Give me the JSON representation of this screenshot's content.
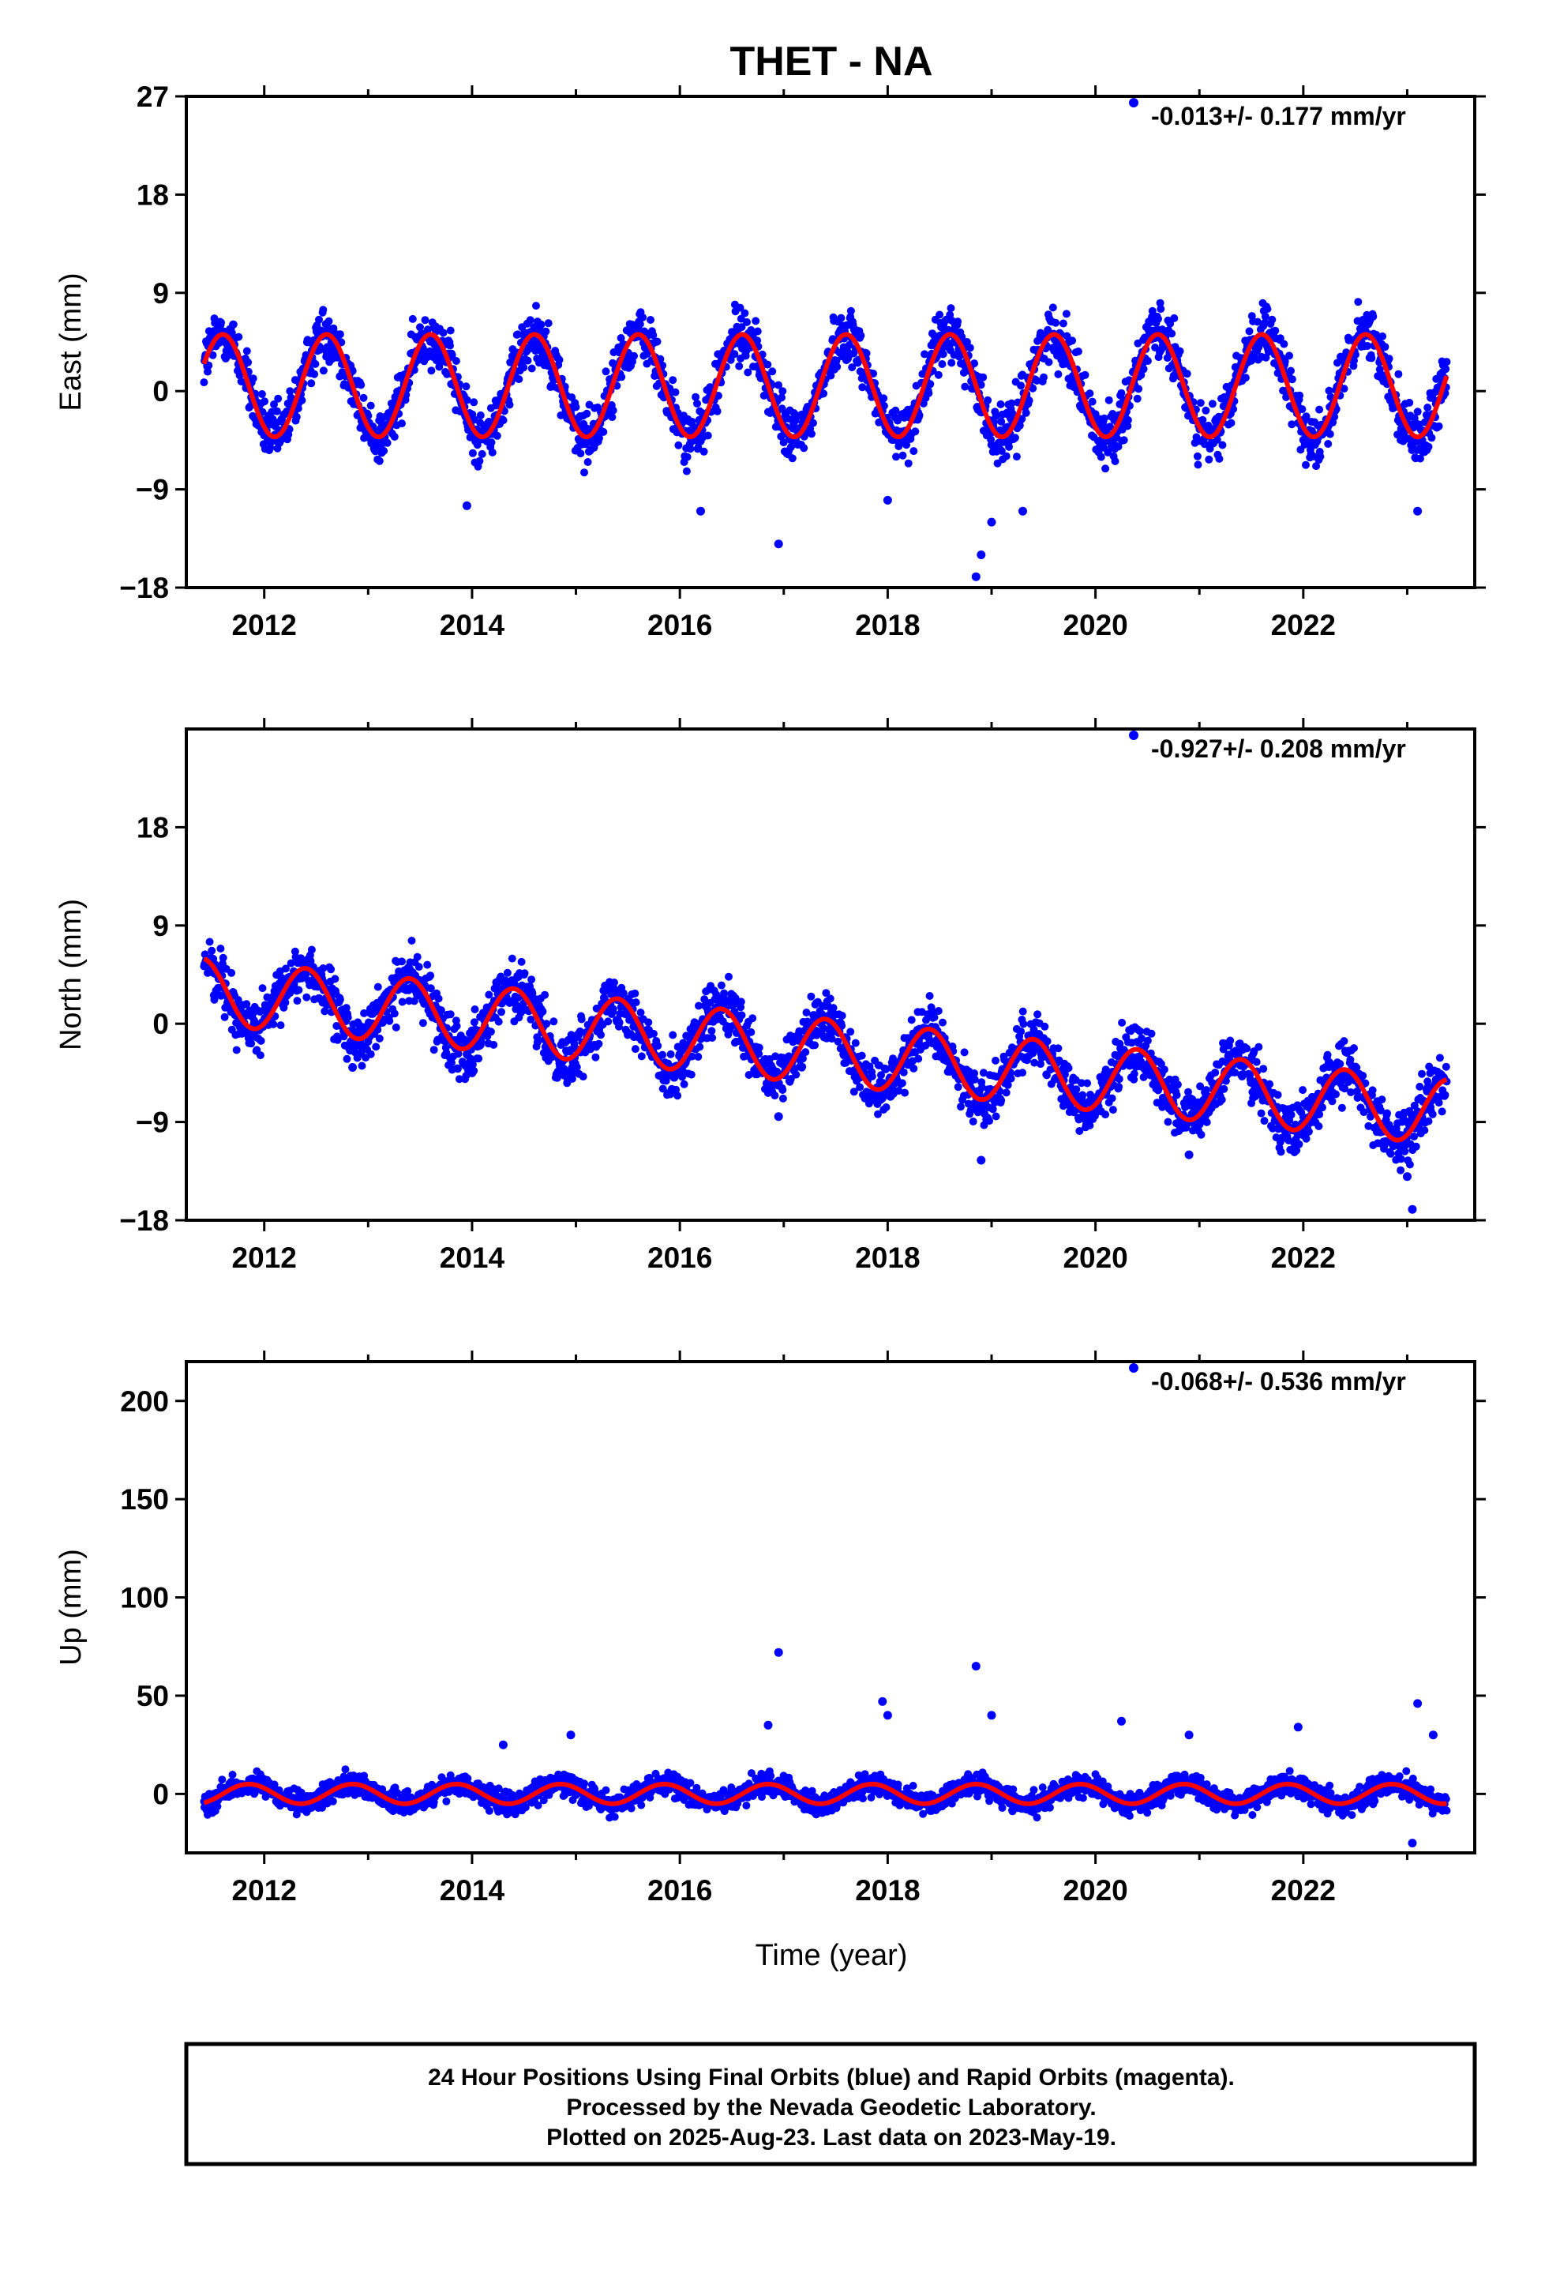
{
  "chart_data": [
    {
      "type": "scatter",
      "title": "THET - NA",
      "xlabel": "",
      "ylabel": "East (mm)",
      "xlim": [
        2011.25,
        2023.65
      ],
      "ylim": [
        -18,
        27
      ],
      "yticks": [
        27,
        18,
        9,
        0,
        -9,
        -18
      ],
      "yticklabels": [
        "27",
        "18",
        "9",
        "0",
        "−9",
        "−18"
      ],
      "xticks": [
        2012,
        2014,
        2016,
        2018,
        2020,
        2022
      ],
      "xticklabels": [
        "2012",
        "2014",
        "2016",
        "2018",
        "2020",
        "2022"
      ],
      "rate_label": "-0.013+/- 0.177 mm/yr",
      "series": [
        {
          "color": "#0000ff",
          "marker": "dot",
          "description_x_range": [
            2011.4,
            2023.38
          ],
          "x": [
            2011.4,
            2011.6,
            2011.9,
            2012.1,
            2012.4,
            2012.6,
            2012.9,
            2013.1,
            2013.4,
            2013.6,
            2013.9,
            2014.1,
            2014.4,
            2014.6,
            2014.9,
            2015.1,
            2015.4,
            2015.6,
            2015.9,
            2016.1,
            2016.4,
            2016.6,
            2016.9,
            2017.1,
            2017.4,
            2017.6,
            2017.9,
            2018.1,
            2018.4,
            2018.6,
            2018.9,
            2019.1,
            2019.4,
            2019.6,
            2019.9,
            2020.1,
            2020.4,
            2020.6,
            2020.9,
            2021.1,
            2021.4,
            2021.6,
            2021.9,
            2022.1,
            2022.4,
            2022.6,
            2022.9,
            2023.1,
            2023.38
          ],
          "y": [
            2.5,
            5.5,
            -3.5,
            -2.5,
            2.5,
            5.5,
            -3.5,
            -2.5,
            2.5,
            5.5,
            -3.5,
            -2.5,
            2.5,
            5.5,
            -3.5,
            -2.5,
            2.5,
            5.5,
            -3.5,
            -2.5,
            2.5,
            5.5,
            -3.5,
            -2.5,
            2.5,
            5.5,
            -3.5,
            -2.5,
            2.5,
            5.5,
            -3.5,
            -2.5,
            2.5,
            5.5,
            -3.5,
            -2.5,
            2.5,
            5.5,
            -3.5,
            -2.5,
            2.5,
            5.5,
            -3.5,
            -2.5,
            2.5,
            5.5,
            -3.5,
            -2.5,
            1.0
          ],
          "outliers": [
            [
              2013.95,
              -10.5
            ],
            [
              2016.2,
              -11
            ],
            [
              2016.95,
              -14
            ],
            [
              2018.0,
              -10
            ],
            [
              2018.85,
              -17
            ],
            [
              2018.9,
              -15
            ],
            [
              2019.0,
              -12
            ],
            [
              2019.3,
              -11
            ],
            [
              2023.1,
              -11
            ]
          ]
        },
        {
          "color": "#ff0000",
          "type": "line",
          "mean": 0.5,
          "amplitude": 4.7,
          "trend": -0.013
        }
      ]
    },
    {
      "type": "scatter",
      "title": "",
      "xlabel": "",
      "ylabel": "North (mm)",
      "xlim": [
        2011.25,
        2023.65
      ],
      "ylim": [
        -18,
        27
      ],
      "yticks": [
        18,
        9,
        0,
        -9,
        -18
      ],
      "yticklabels": [
        "18",
        "9",
        "0",
        "−9",
        "−18"
      ],
      "xticks": [
        2012,
        2014,
        2016,
        2018,
        2020,
        2022
      ],
      "xticklabels": [
        "2012",
        "2014",
        "2016",
        "2018",
        "2020",
        "2022"
      ],
      "rate_label": "-0.927+/- 0.208 mm/yr",
      "series": [
        {
          "color": "#0000ff",
          "marker": "dot",
          "x": [
            2011.45,
            2011.9,
            2012.3,
            2012.85,
            2013.3,
            2013.85,
            2014.3,
            2014.85,
            2015.3,
            2015.85,
            2016.3,
            2016.85,
            2017.3,
            2017.85,
            2018.3,
            2018.85,
            2019.3,
            2019.85,
            2020.3,
            2020.85,
            2021.3,
            2021.85,
            2022.3,
            2022.85,
            2023.38
          ],
          "y": [
            6.5,
            0.5,
            5.5,
            0,
            4.5,
            -1.0,
            3.5,
            -2.0,
            3.0,
            -3.0,
            2.0,
            -4.0,
            1.0,
            -5.0,
            0,
            -6.0,
            -1.0,
            -7.0,
            -2.0,
            -8.0,
            -3.0,
            -9.0,
            -4.0,
            -10.0,
            -5.0
          ],
          "outliers": [
            [
              2012.85,
              -4
            ],
            [
              2014.0,
              -4.5
            ],
            [
              2016.95,
              -8.5
            ],
            [
              2018.9,
              -12.5
            ],
            [
              2020.9,
              -12
            ],
            [
              2023.0,
              -14
            ],
            [
              2023.05,
              -17
            ]
          ]
        },
        {
          "color": "#ff0000",
          "type": "line",
          "mean": 3.5,
          "amplitude": 3.0,
          "trend": -0.927
        }
      ]
    },
    {
      "type": "scatter",
      "title": "",
      "xlabel": "Time (year)",
      "ylabel": "Up (mm)",
      "xlim": [
        2011.25,
        2023.65
      ],
      "ylim": [
        -30,
        220
      ],
      "yticks": [
        200,
        150,
        100,
        50,
        0
      ],
      "yticklabels": [
        "200",
        "150",
        "100",
        "50",
        "0"
      ],
      "xticks": [
        2012,
        2014,
        2016,
        2018,
        2020,
        2022
      ],
      "xticklabels": [
        "2012",
        "2014",
        "2016",
        "2018",
        "2020",
        "2022"
      ],
      "rate_label": "-0.068+/- 0.536 mm/yr",
      "series": [
        {
          "color": "#0000ff",
          "marker": "dot",
          "x": [
            2011.4,
            2011.85,
            2012.35,
            2012.85,
            2013.35,
            2013.85,
            2014.35,
            2014.85,
            2015.35,
            2015.85,
            2016.35,
            2016.85,
            2017.35,
            2017.85,
            2018.35,
            2018.85,
            2019.35,
            2019.85,
            2020.35,
            2020.85,
            2021.35,
            2021.85,
            2022.35,
            2022.85,
            2023.38
          ],
          "y": [
            -2,
            5,
            -5,
            5,
            -5,
            5,
            -5,
            5,
            -5,
            5,
            -5,
            5,
            -5,
            5,
            -5,
            5,
            -5,
            5,
            -5,
            5,
            -5,
            5,
            -5,
            5,
            -6
          ],
          "outliers": [
            [
              2014.3,
              25
            ],
            [
              2014.95,
              30
            ],
            [
              2016.85,
              35
            ],
            [
              2016.95,
              72
            ],
            [
              2017.95,
              47
            ],
            [
              2018.0,
              40
            ],
            [
              2018.85,
              65
            ],
            [
              2019.0,
              40
            ],
            [
              2020.25,
              37
            ],
            [
              2020.9,
              30
            ],
            [
              2021.95,
              34
            ],
            [
              2023.1,
              46
            ],
            [
              2023.25,
              30
            ],
            [
              2023.05,
              -25
            ]
          ]
        },
        {
          "color": "#ff0000",
          "type": "line",
          "mean": 0,
          "amplitude": 5.0,
          "trend": -0.068
        }
      ]
    }
  ],
  "footer": {
    "line1": "24 Hour Positions Using Final Orbits (blue) and Rapid Orbits (magenta).",
    "line2": "Processed by the Nevada Geodetic Laboratory.",
    "line3": "Plotted on 2025-Aug-23. Last data on 2023-May-19."
  }
}
